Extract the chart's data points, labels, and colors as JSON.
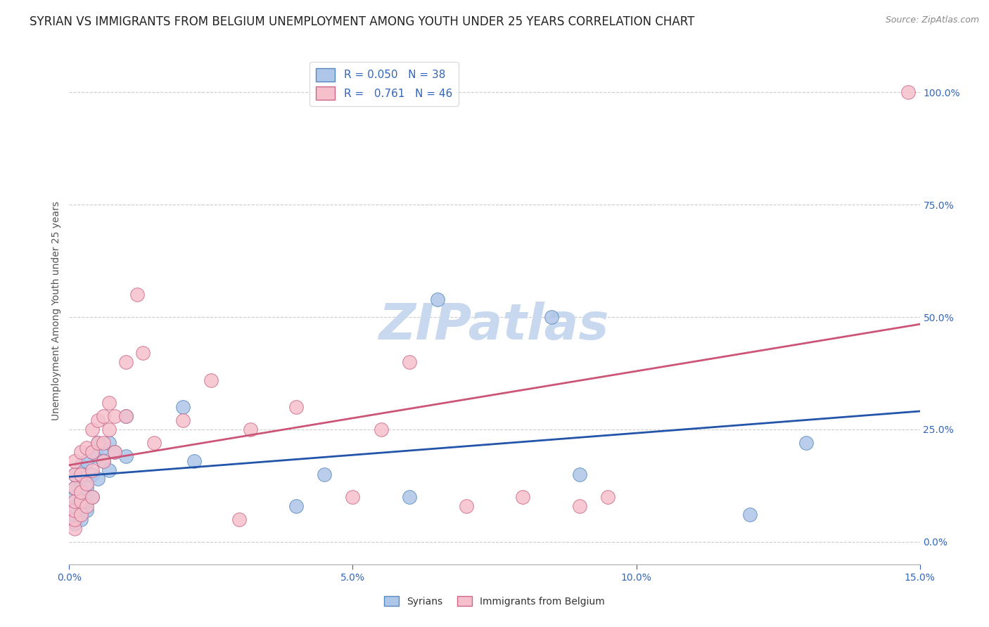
{
  "title": "SYRIAN VS IMMIGRANTS FROM BELGIUM UNEMPLOYMENT AMONG YOUTH UNDER 25 YEARS CORRELATION CHART",
  "source": "Source: ZipAtlas.com",
  "ylabel": "Unemployment Among Youth under 25 years",
  "watermark": "ZIPatlas",
  "xlim": [
    0.0,
    0.15
  ],
  "ylim": [
    -0.05,
    1.08
  ],
  "xticks": [
    0.0,
    0.05,
    0.1,
    0.15
  ],
  "xticklabels": [
    "0.0%",
    "5.0%",
    "10.0%",
    "15.0%"
  ],
  "yticks_right": [
    0.0,
    0.25,
    0.5,
    0.75,
    1.0
  ],
  "yticklabels_right": [
    "0.0%",
    "25.0%",
    "50.0%",
    "75.0%",
    "100.0%"
  ],
  "grid_color": "#cccccc",
  "background_color": "#ffffff",
  "syrians_R": 0.05,
  "syrians_N": 38,
  "syrians_color": "#aec6e8",
  "syrians_edge_color": "#5588bb",
  "syrians_line_color": "#2255aa",
  "syrians_label": "Syrians",
  "belgium_R": 0.761,
  "belgium_N": 46,
  "belgium_color": "#f5c0cc",
  "belgium_edge_color": "#cc6688",
  "belgium_line_color": "#cc5577",
  "belgium_label": "Immigrants from Belgium",
  "syrians_x": [
    0.001,
    0.001,
    0.001,
    0.001,
    0.001,
    0.001,
    0.002,
    0.002,
    0.002,
    0.002,
    0.002,
    0.003,
    0.003,
    0.003,
    0.003,
    0.004,
    0.004,
    0.004,
    0.005,
    0.005,
    0.005,
    0.006,
    0.006,
    0.007,
    0.007,
    0.008,
    0.01,
    0.01,
    0.02,
    0.022,
    0.04,
    0.045,
    0.06,
    0.065,
    0.085,
    0.09,
    0.12,
    0.13
  ],
  "syrians_y": [
    0.04,
    0.06,
    0.08,
    0.1,
    0.12,
    0.15,
    0.05,
    0.08,
    0.1,
    0.13,
    0.17,
    0.07,
    0.09,
    0.12,
    0.18,
    0.1,
    0.15,
    0.2,
    0.14,
    0.19,
    0.22,
    0.18,
    0.21,
    0.16,
    0.22,
    0.2,
    0.19,
    0.28,
    0.3,
    0.18,
    0.08,
    0.15,
    0.1,
    0.54,
    0.5,
    0.15,
    0.06,
    0.22
  ],
  "belgium_x": [
    0.001,
    0.001,
    0.001,
    0.001,
    0.001,
    0.001,
    0.001,
    0.002,
    0.002,
    0.002,
    0.002,
    0.002,
    0.003,
    0.003,
    0.003,
    0.004,
    0.004,
    0.004,
    0.004,
    0.005,
    0.005,
    0.006,
    0.006,
    0.006,
    0.007,
    0.007,
    0.008,
    0.008,
    0.01,
    0.01,
    0.012,
    0.013,
    0.015,
    0.02,
    0.025,
    0.03,
    0.032,
    0.04,
    0.05,
    0.055,
    0.06,
    0.07,
    0.08,
    0.09,
    0.095,
    0.148
  ],
  "belgium_y": [
    0.03,
    0.05,
    0.07,
    0.09,
    0.12,
    0.15,
    0.18,
    0.06,
    0.09,
    0.11,
    0.15,
    0.2,
    0.08,
    0.13,
    0.21,
    0.1,
    0.16,
    0.2,
    0.25,
    0.22,
    0.27,
    0.18,
    0.22,
    0.28,
    0.25,
    0.31,
    0.2,
    0.28,
    0.28,
    0.4,
    0.55,
    0.42,
    0.22,
    0.27,
    0.36,
    0.05,
    0.25,
    0.3,
    0.1,
    0.25,
    0.4,
    0.08,
    0.1,
    0.08,
    0.1,
    1.0
  ],
  "title_fontsize": 12,
  "label_fontsize": 10,
  "tick_fontsize": 10,
  "legend_fontsize": 11,
  "watermark_fontsize": 52,
  "watermark_color": "#c8d8ee",
  "source_fontsize": 9,
  "axis_color_blue": "#3366bb",
  "title_color": "#222222"
}
